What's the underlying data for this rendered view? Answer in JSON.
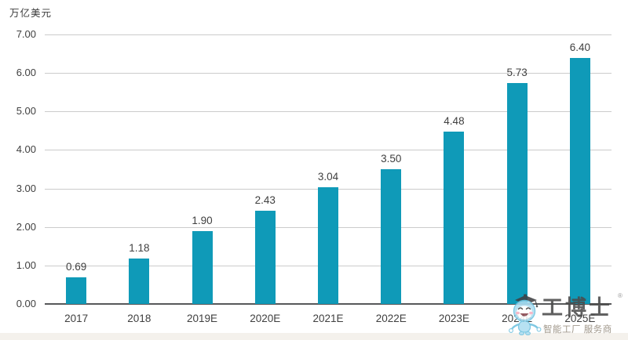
{
  "chart_data": {
    "type": "bar",
    "title": "",
    "unit_label": "万亿美元",
    "categories": [
      "2017",
      "2018",
      "2019E",
      "2020E",
      "2021E",
      "2022E",
      "2023E",
      "2024E",
      "2025E"
    ],
    "values": [
      0.69,
      1.18,
      1.9,
      2.43,
      3.04,
      3.5,
      4.48,
      5.73,
      6.4
    ],
    "value_labels": [
      "0.69",
      "1.18",
      "1.90",
      "2.43",
      "3.04",
      "3.50",
      "4.48",
      "5.73",
      "6.40"
    ],
    "y_ticks": [
      "7.00",
      "6.00",
      "5.00",
      "4.00",
      "3.00",
      "2.00",
      "1.00",
      "0.00"
    ],
    "ylim": [
      0,
      7
    ],
    "grid": true,
    "legend": "none",
    "bar_color": "#0f9ab8",
    "gridline_color": "#cbcbcb",
    "axisline_color": "#57585a",
    "text_color": "#3f3f3f"
  },
  "watermark": {
    "brand": "工博士",
    "registered": "®",
    "tagline": "智能工厂 服务商",
    "mascot": "graduate-robot-mascot-icon"
  }
}
